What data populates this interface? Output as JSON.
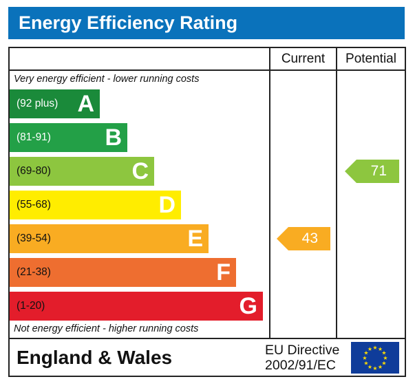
{
  "title": "Energy Efficiency Rating",
  "columns": {
    "current": "Current",
    "potential": "Potential"
  },
  "top_note": "Very energy efficient - lower running costs",
  "bottom_note": "Not energy efficient - higher running costs",
  "footer": {
    "region": "England & Wales",
    "directive_line1": "EU Directive",
    "directive_line2": "2002/91/EC",
    "flag_icon": "eu-flag-icon"
  },
  "chart_data": {
    "type": "bar",
    "bands": [
      {
        "letter": "A",
        "range": "(92 plus)",
        "color": "#1a8a3a",
        "text_color": "#ffffff"
      },
      {
        "letter": "B",
        "range": "(81-91)",
        "color": "#23a047",
        "text_color": "#ffffff"
      },
      {
        "letter": "C",
        "range": "(69-80)",
        "color": "#8dc63f",
        "text_color": "#111111"
      },
      {
        "letter": "D",
        "range": "(55-68)",
        "color": "#ffed00",
        "text_color": "#111111"
      },
      {
        "letter": "E",
        "range": "(39-54)",
        "color": "#f9ac22",
        "text_color": "#111111"
      },
      {
        "letter": "F",
        "range": "(21-38)",
        "color": "#ee6e30",
        "text_color": "#111111"
      },
      {
        "letter": "G",
        "range": "(1-20)",
        "color": "#e31d2b",
        "text_color": "#111111"
      }
    ],
    "current": {
      "value": "43",
      "band": "E",
      "color": "#f9ac22"
    },
    "potential": {
      "value": "71",
      "band": "C",
      "color": "#8dc63f"
    }
  }
}
